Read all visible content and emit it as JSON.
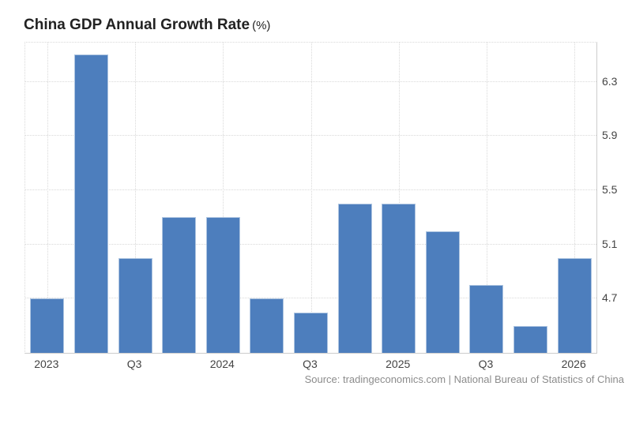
{
  "header": {
    "title": "China GDP Annual Growth Rate",
    "unit": "(%)"
  },
  "footer": {
    "source": "Source: tradingeconomics.com | National Bureau of Statistics of China"
  },
  "chart_data": {
    "type": "bar",
    "title": "China GDP Annual Growth Rate (%)",
    "values": [
      4.7,
      6.5,
      5.0,
      5.3,
      5.3,
      4.7,
      4.6,
      5.4,
      5.4,
      5.2,
      4.8,
      4.5,
      5.0
    ],
    "x_tick_labels": [
      "2023",
      "Q3",
      "2024",
      "Q3",
      "2025",
      "Q3",
      "2026"
    ],
    "x_tick_bar_indices": [
      0,
      2,
      4,
      6,
      8,
      10,
      12
    ],
    "y_ticks": [
      4.7,
      5.1,
      5.5,
      5.9,
      6.3
    ],
    "y_tick_labels": [
      "4.7",
      "5.1",
      "5.5",
      "5.9",
      "6.3"
    ],
    "ylim": [
      4.3,
      6.59
    ],
    "grid": "dotted",
    "legend": "none",
    "bar_color": "#4d7ebd"
  }
}
